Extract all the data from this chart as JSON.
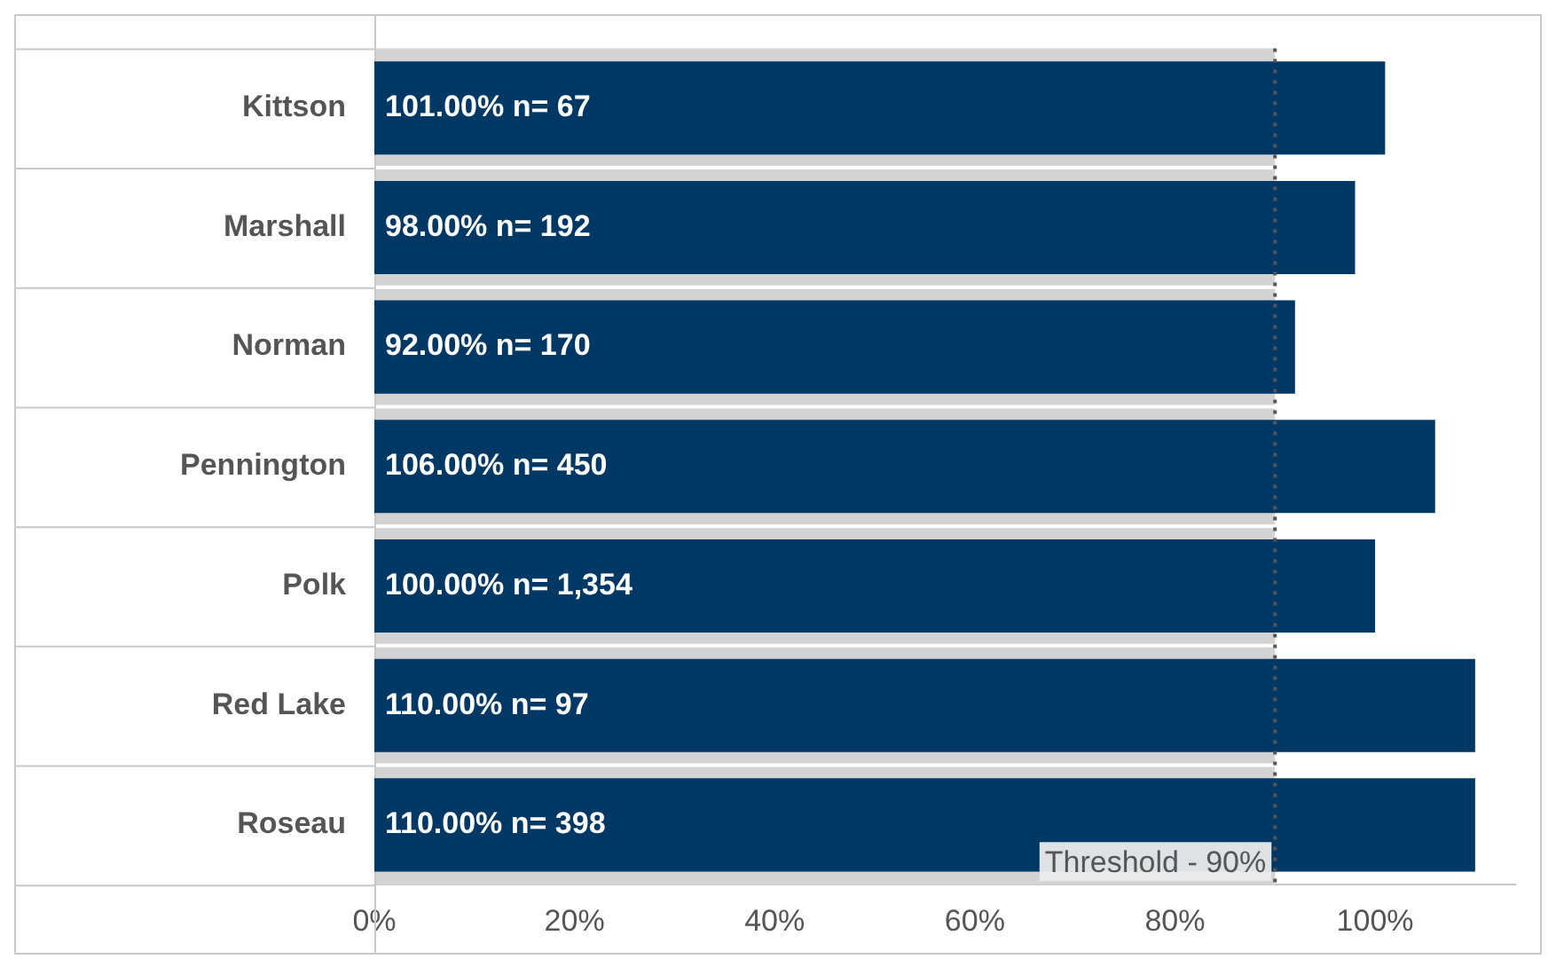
{
  "chart_data": {
    "type": "bar",
    "orientation": "horizontal",
    "categories": [
      "Kittson",
      "Marshall",
      "Norman",
      "Pennington",
      "Polk",
      "Red Lake",
      "Roseau"
    ],
    "values": [
      101,
      98,
      92,
      106,
      100,
      110,
      110
    ],
    "color": "#003865",
    "value_labels": [
      "101.00% n= 67",
      "98.00% n= 192",
      "92.00% n= 170",
      "106.00% n= 450",
      "100.00% n= 1,354",
      "110.00% n= 97",
      "110.00% n= 398"
    ],
    "xlim": [
      0,
      114
    ],
    "xticks": [
      {
        "value": 0,
        "label": "0%"
      },
      {
        "value": 20,
        "label": "20%"
      },
      {
        "value": 40,
        "label": "40%"
      },
      {
        "value": 60,
        "label": "60%"
      },
      {
        "value": 80,
        "label": "80%"
      },
      {
        "value": 100,
        "label": "100%"
      }
    ],
    "ref_lines": [
      {
        "axis": "x",
        "value": 90,
        "label": "Threshold - 90%",
        "color": "#555555",
        "line_style": "dotted"
      }
    ],
    "bands": [
      {
        "axis": "x",
        "from": 0,
        "to": 90,
        "color": "#d3d3d3"
      }
    ],
    "grid": false,
    "legend": false
  }
}
